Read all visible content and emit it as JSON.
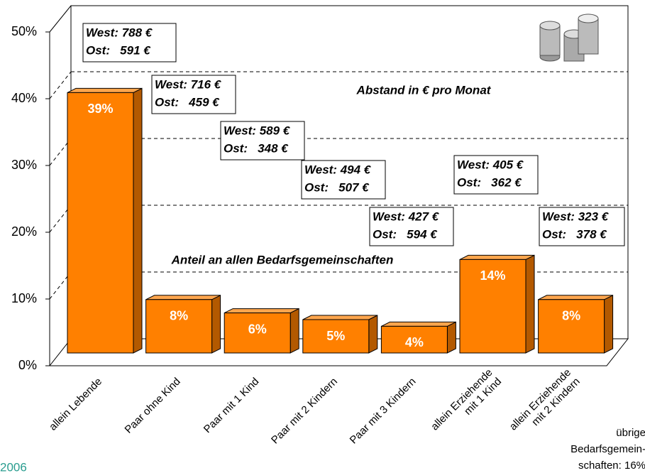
{
  "chart_data": {
    "type": "bar3d",
    "categories": [
      [
        "allein Lebende"
      ],
      [
        "Paar ohne Kind"
      ],
      [
        "Paar mit 1 Kind"
      ],
      [
        "Paar mit 2 Kindern"
      ],
      [
        "Paar mit 3 Kindern"
      ],
      [
        "allein Erziehende",
        "mit 1 Kind"
      ],
      [
        "allein Erziehende",
        "mit 2 Kindern"
      ]
    ],
    "values": [
      39,
      8,
      6,
      5,
      4,
      14,
      8
    ],
    "value_labels": [
      "39%",
      "8%",
      "6%",
      "5%",
      "4%",
      "14%",
      "8%"
    ],
    "color": "#ff8000",
    "ylim": [
      0,
      50
    ],
    "yticks": [
      {
        "value": 0,
        "label": "0%"
      },
      {
        "value": 10,
        "label": "10%"
      },
      {
        "value": 20,
        "label": "20%"
      },
      {
        "value": 30,
        "label": "30%"
      },
      {
        "value": 40,
        "label": "40%"
      },
      {
        "value": 50,
        "label": "50%"
      }
    ],
    "grid": true,
    "annotations": [
      [
        "West: 788 €",
        "Ost:   591 €"
      ],
      [
        "West: 716 €",
        "Ost:   459 €"
      ],
      [
        "West: 589 €",
        "Ost:   348 €"
      ],
      [
        "West: 494 €",
        "Ost:   507 €"
      ],
      [
        "West: 427 €",
        "Ost:   594 €"
      ],
      [
        "West: 405 €",
        "Ost:   362 €"
      ],
      [
        "West: 323 €",
        "Ost:   378 €"
      ]
    ],
    "labels": {
      "distance": "Abstand in € pro Monat",
      "share": "Anteil an allen Bedarfsgemeinschaften"
    },
    "footnote": [
      "übrige",
      "Bedarfsgemein-",
      "schaften: 16%"
    ],
    "year": "2006"
  }
}
